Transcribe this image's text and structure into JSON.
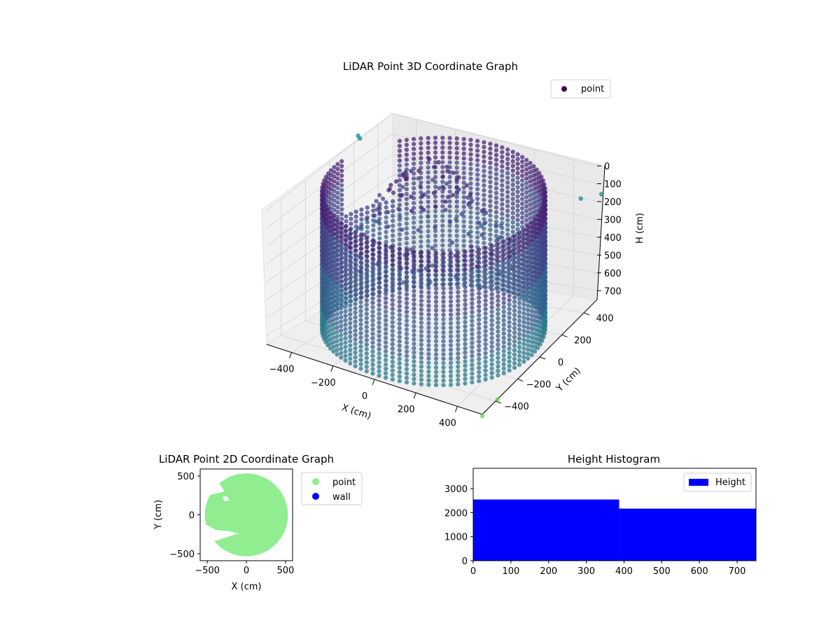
{
  "figure": {
    "background": "#ffffff"
  },
  "chart_data": [
    {
      "type": "scatter",
      "projection": "3d",
      "title": "LiDAR Point 3D Coordinate Graph",
      "xlabel": "X (cm)",
      "ylabel": "Y (cm)",
      "zlabel": "H (cm)",
      "x_ticks": [
        "−400",
        "−200",
        "0",
        "200",
        "400"
      ],
      "y_ticks": [
        "−400",
        "−200",
        "0",
        "200",
        "400"
      ],
      "z_ticks": [
        "0",
        "100",
        "200",
        "300",
        "400",
        "500",
        "600",
        "700"
      ],
      "xlim": [
        -520,
        520
      ],
      "ylim": [
        -520,
        520
      ],
      "zlim": [
        0,
        750
      ],
      "z_inverted": true,
      "grid": true,
      "legend": {
        "placement": "upper-right",
        "entries": [
          "point"
        ]
      },
      "series": [
        {
          "name": "point",
          "colormap": "viridis",
          "legend_color": "#440154",
          "shape": "cylindrical wall of points, radius about 480 cm, height 0 to 750 cm",
          "outliers": [
            {
              "x": -600,
              "y": 380,
              "h": 80
            },
            {
              "x": -560,
              "y": 300,
              "h": 20
            },
            {
              "x": 560,
              "y": 300,
              "h": 30
            },
            {
              "x": 620,
              "y": 380,
              "h": 40
            },
            {
              "x": 540,
              "y": -420,
              "h": 720
            },
            {
              "x": 520,
              "y": -520,
              "h": 760
            }
          ]
        }
      ]
    },
    {
      "type": "scatter",
      "title": "LiDAR Point 2D Coordinate Graph",
      "xlabel": "X (cm)",
      "ylabel": "Y (cm)",
      "x_ticks": [
        "−500",
        "0",
        "500"
      ],
      "y_ticks": [
        "−500",
        "0",
        "500"
      ],
      "xlim": [
        -590,
        590
      ],
      "ylim": [
        -590,
        590
      ],
      "legend": {
        "placement": "outside-right",
        "entries": [
          "point",
          "wall"
        ]
      },
      "series": [
        {
          "name": "point",
          "color": "#90ee90",
          "shape": "filled disc of radius about 530 cm with two white notches on the left"
        },
        {
          "name": "wall",
          "color": "#0000ff",
          "values": []
        }
      ]
    },
    {
      "type": "bar",
      "title": "Height Histogram",
      "xlabel": "",
      "ylabel": "",
      "x_ticks": [
        "0",
        "100",
        "200",
        "300",
        "400",
        "500",
        "600",
        "700"
      ],
      "y_ticks": [
        "0",
        "1000",
        "2000",
        "3000"
      ],
      "xlim": [
        0,
        750
      ],
      "ylim": [
        0,
        3850
      ],
      "legend": {
        "placement": "upper-right",
        "entries": [
          "Height"
        ]
      },
      "series": [
        {
          "name": "Height",
          "color": "#0000ff",
          "bins": [
            {
              "from": 0,
              "to": 387,
              "count": 2550
            },
            {
              "from": 387,
              "to": 750,
              "count": 2170
            }
          ]
        }
      ]
    }
  ]
}
